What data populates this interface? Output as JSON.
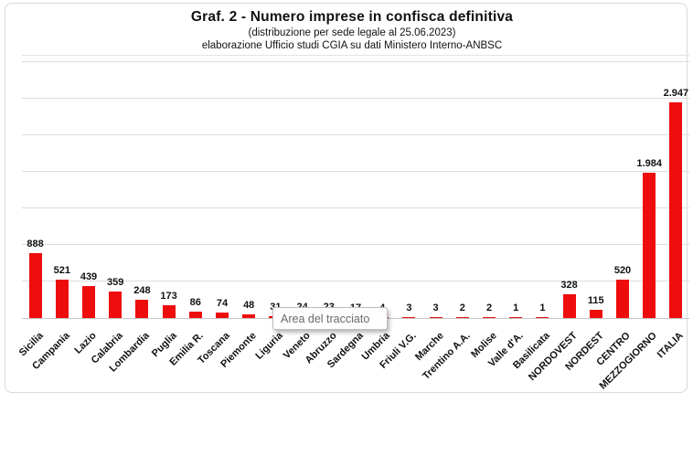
{
  "header": {
    "title": "Graf. 2 - Numero imprese in confisca definitiva",
    "subtitle1": "(distribuzione per sede legale al 25.06.2023)",
    "subtitle2": "elaborazione Ufficio studi CGIA su dati Ministero Interno-ANBSC"
  },
  "tooltip": {
    "text": "Area del tracciato"
  },
  "chart_data": {
    "type": "bar",
    "title": "Graf. 2 - Numero imprese in confisca definitiva",
    "subtitle": "(distribuzione per sede legale al 25.06.2023) — elaborazione Ufficio studi CGIA su dati Ministero Interno-ANBSC",
    "categories": [
      "Sicilia",
      "Campania",
      "Lazio",
      "Calabria",
      "Lombardia",
      "Puglia",
      "Emilia R.",
      "Toscana",
      "Piemonte",
      "Liguria",
      "Veneto",
      "Abruzzo",
      "Sardegna",
      "Umbria",
      "Friuli V.G.",
      "Marche",
      "Trentino A.A.",
      "Molise",
      "Valle d'A.",
      "Basilicata",
      "NORDOVEST",
      "NORDEST",
      "CENTRO",
      "MEZZOGIORNO",
      "ITALIA"
    ],
    "values": [
      888,
      521,
      439,
      359,
      248,
      173,
      86,
      74,
      48,
      31,
      24,
      23,
      17,
      4,
      3,
      3,
      2,
      2,
      1,
      1,
      328,
      115,
      520,
      1984,
      2947
    ],
    "value_labels": [
      "888",
      "521",
      "439",
      "359",
      "248",
      "173",
      "86",
      "74",
      "48",
      "31",
      "24",
      "23",
      "17",
      "4",
      "3",
      "3",
      "2",
      "2",
      "1",
      "1",
      "328",
      "115",
      "520",
      "1.984",
      "2.947"
    ],
    "xlabel": "",
    "ylabel": "",
    "y_axis_tick_labels": "none (gridlines only)",
    "ylim": [
      0,
      3600
    ],
    "gridline_step": 500,
    "gridline_max": 3500,
    "grid": true,
    "legend": "none",
    "bar_color": "#ee0d0d"
  }
}
